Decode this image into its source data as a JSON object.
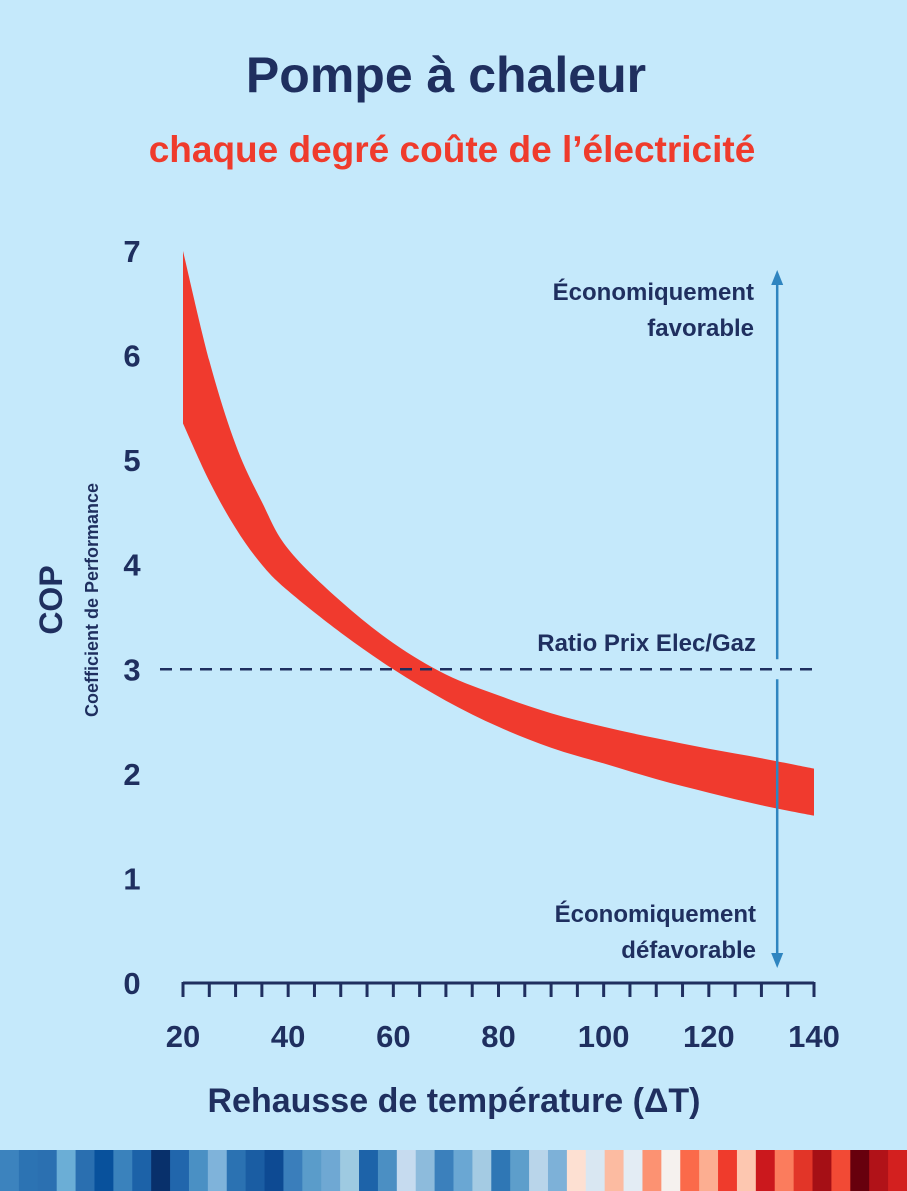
{
  "chart_data": {
    "type": "area",
    "title": "Pompe à chaleur",
    "subtitle": "chaque degré coûte de l’électricité",
    "xlabel": "Rehausse de température (ΔT)",
    "ylabel": "COP",
    "ylabel_sub": "Coefficient de Performance",
    "xlim": [
      20,
      140
    ],
    "ylim": [
      0,
      7
    ],
    "x_ticks": [
      20,
      40,
      60,
      80,
      100,
      120,
      140
    ],
    "y_ticks": [
      0,
      1,
      2,
      3,
      4,
      5,
      6,
      7
    ],
    "x_minor_step": 5,
    "band": {
      "color": "#f03a2e",
      "x": [
        20,
        25,
        30,
        35,
        40,
        50,
        60,
        70,
        80,
        90,
        100,
        110,
        120,
        130,
        140
      ],
      "upper": [
        7.0,
        5.95,
        5.15,
        4.6,
        4.15,
        3.65,
        3.25,
        2.95,
        2.75,
        2.58,
        2.45,
        2.34,
        2.24,
        2.15,
        2.05
      ],
      "lower": [
        5.35,
        4.8,
        4.35,
        4.0,
        3.75,
        3.35,
        3.0,
        2.7,
        2.45,
        2.25,
        2.1,
        1.95,
        1.82,
        1.7,
        1.6
      ]
    },
    "reference_line": {
      "y": 3,
      "label": "Ratio Prix Elec/Gaz",
      "style": "dashed",
      "color": "#1f2f5f"
    },
    "arrow": {
      "x": 133,
      "color": "#2f85c0"
    },
    "annotations": {
      "top": [
        "Économiquement",
        "favorable"
      ],
      "bottom": [
        "Économiquement",
        "défavorable"
      ]
    },
    "grid": false,
    "legend": "none"
  },
  "stripes": {
    "colors": [
      "#3c83be",
      "#2c73b3",
      "#2b70b1",
      "#6baed6",
      "#2a6fb0",
      "#08519c",
      "#3a82bc",
      "#1c62a8",
      "#08306b",
      "#2166ac",
      "#4a90c4",
      "#7fb3da",
      "#2b72b2",
      "#1a5da3",
      "#0d4a93",
      "#3a7ebb",
      "#5a9cca",
      "#6fa8d3",
      "#9ecae1",
      "#1d63a9",
      "#4b8fc3",
      "#c6dbef",
      "#8dbbdc",
      "#3b80bc",
      "#6aa7d3",
      "#a4cbe3",
      "#2f77b5",
      "#5d9ecb",
      "#b9d5ea",
      "#7db1d8",
      "#fde0d2",
      "#d9e7f2",
      "#fcbba1",
      "#e3ecf4",
      "#fc9272",
      "#f5f1ee",
      "#fb6a4a",
      "#fcae91",
      "#ef3b2c",
      "#fdc7b0",
      "#cb181d",
      "#fb7c5d",
      "#e23528",
      "#a50f15",
      "#f24a35",
      "#67000d",
      "#b11218",
      "#d3201f"
    ]
  }
}
